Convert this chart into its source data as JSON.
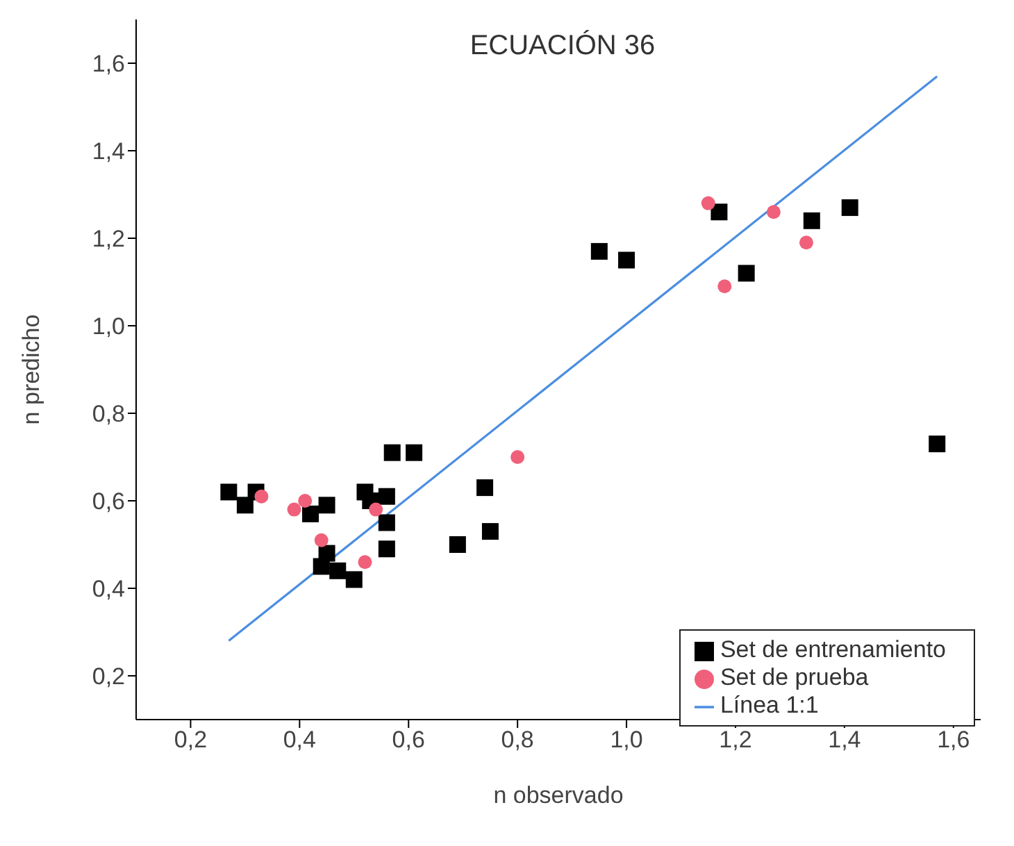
{
  "chart_data": {
    "type": "scatter",
    "title": "ECUACIÓN 36",
    "xlabel": "n observado",
    "ylabel": "n predicho",
    "xlim": [
      0.1,
      1.65
    ],
    "ylim": [
      0.1,
      1.7
    ],
    "xticks": [
      {
        "value": 0.2,
        "label": "0,2"
      },
      {
        "value": 0.4,
        "label": "0,4"
      },
      {
        "value": 0.6,
        "label": "0,6"
      },
      {
        "value": 0.8,
        "label": "0,8"
      },
      {
        "value": 1.0,
        "label": "1,0"
      },
      {
        "value": 1.2,
        "label": "1,2"
      },
      {
        "value": 1.4,
        "label": "1,4"
      },
      {
        "value": 1.6,
        "label": "1,6"
      }
    ],
    "yticks": [
      {
        "value": 0.2,
        "label": "0,2"
      },
      {
        "value": 0.4,
        "label": "0,4"
      },
      {
        "value": 0.6,
        "label": "0,6"
      },
      {
        "value": 0.8,
        "label": "0,8"
      },
      {
        "value": 1.0,
        "label": "1,0"
      },
      {
        "value": 1.2,
        "label": "1,2"
      },
      {
        "value": 1.4,
        "label": "1,4"
      },
      {
        "value": 1.6,
        "label": "1,6"
      }
    ],
    "grid": false,
    "legend": "bottom right",
    "series": [
      {
        "name": "Set de entrenamiento",
        "type": "scatter",
        "marker": "square",
        "color": "#000000",
        "x": [
          0.27,
          0.3,
          0.32,
          0.45,
          0.42,
          0.52,
          0.53,
          0.56,
          0.56,
          0.56,
          0.57,
          0.61,
          0.45,
          0.44,
          0.47,
          0.5,
          0.69,
          0.74,
          0.75,
          0.95,
          1.0,
          1.17,
          1.22,
          1.34,
          1.41,
          1.57
        ],
        "values": [
          0.62,
          0.59,
          0.62,
          0.59,
          0.57,
          0.62,
          0.6,
          0.61,
          0.55,
          0.49,
          0.71,
          0.71,
          0.48,
          0.45,
          0.44,
          0.42,
          0.5,
          0.63,
          0.53,
          1.17,
          1.15,
          1.26,
          1.12,
          1.24,
          1.27,
          0.73
        ]
      },
      {
        "name": "Set de prueba",
        "type": "scatter",
        "marker": "circle",
        "color": "#f0607a",
        "x": [
          0.33,
          0.41,
          0.39,
          0.44,
          0.54,
          0.52,
          0.8,
          1.15,
          1.27,
          1.33,
          1.18
        ],
        "values": [
          0.61,
          0.6,
          0.58,
          0.51,
          0.58,
          0.46,
          0.7,
          1.28,
          1.26,
          1.19,
          1.09
        ]
      },
      {
        "name": "Línea 1:1",
        "type": "line",
        "marker": "none",
        "line_style": "solid",
        "color": "#4a8ee0",
        "x": [
          0.27,
          1.57
        ],
        "values": [
          0.28,
          1.57
        ]
      }
    ]
  }
}
